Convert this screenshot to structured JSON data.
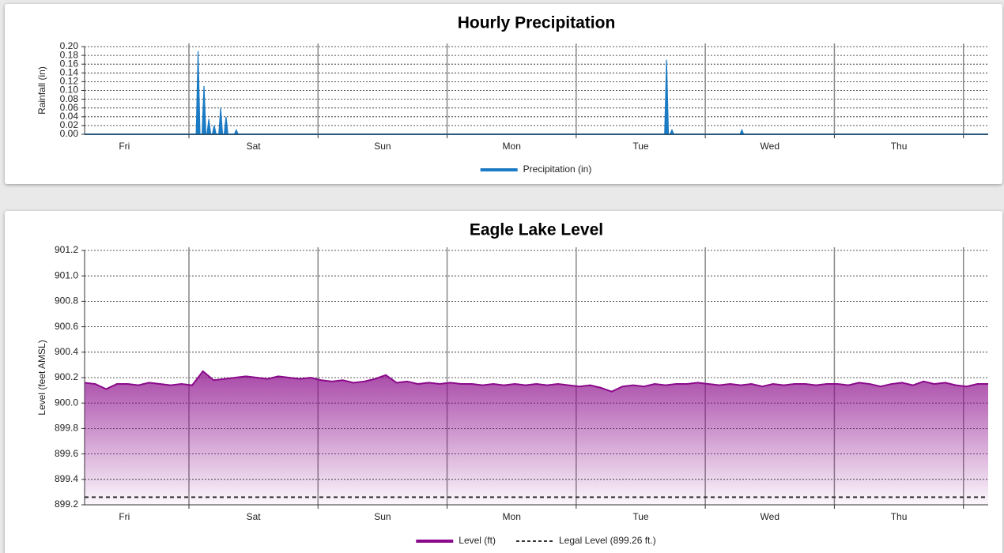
{
  "chart_data": [
    {
      "type": "spike",
      "title": "Hourly Precipitation",
      "y_label": "Rainfall (in)",
      "xlim": [
        0,
        168
      ],
      "xticks": [
        19.4,
        43.4,
        67.4,
        91.4,
        115.4,
        139.4,
        163.4
      ],
      "day_labels": [
        {
          "value": 7.4,
          "label": "Fri"
        },
        {
          "value": 31.4,
          "label": "Sat"
        },
        {
          "value": 55.4,
          "label": "Sun"
        },
        {
          "value": 79.4,
          "label": "Mon"
        },
        {
          "value": 103.4,
          "label": "Tue"
        },
        {
          "value": 127.4,
          "label": "Wed"
        },
        {
          "value": 151.4,
          "label": "Thu"
        }
      ],
      "ylim": [
        0,
        0.2
      ],
      "yticks": [
        {
          "value": 0,
          "label": "0.00"
        },
        {
          "value": 0.02,
          "label": "0.02"
        },
        {
          "value": 0.04,
          "label": "0.04"
        },
        {
          "value": 0.06,
          "label": "0.06"
        },
        {
          "value": 0.08,
          "label": "0.08"
        },
        {
          "value": 0.1,
          "label": "0.10"
        },
        {
          "value": 0.12,
          "label": "0.12"
        },
        {
          "value": 0.14,
          "label": "0.14"
        },
        {
          "value": 0.16,
          "label": "0.16"
        },
        {
          "value": 0.18,
          "label": "0.18"
        },
        {
          "value": 0.2,
          "label": "0.20"
        }
      ],
      "grid": true,
      "series": [
        {
          "name": "Precipitation (in)",
          "color": "#1a7bc4",
          "x": [
            21.1,
            22.2,
            23.1,
            24.1,
            25.3,
            26.3,
            28.2,
            108.2,
            109.2,
            122.2
          ],
          "values": [
            0.19,
            0.11,
            0.035,
            0.02,
            0.06,
            0.04,
            0.01,
            0.17,
            0.01,
            0.01
          ]
        }
      ]
    },
    {
      "type": "area",
      "title": "Eagle Lake Level",
      "y_label": "Level (feet AMSL)",
      "xlim": [
        0,
        168
      ],
      "xticks": [
        19.4,
        43.4,
        67.4,
        91.4,
        115.4,
        139.4,
        163.4
      ],
      "day_labels": [
        {
          "value": 7.4,
          "label": "Fri"
        },
        {
          "value": 31.4,
          "label": "Sat"
        },
        {
          "value": 55.4,
          "label": "Sun"
        },
        {
          "value": 79.4,
          "label": "Mon"
        },
        {
          "value": 103.4,
          "label": "Tue"
        },
        {
          "value": 127.4,
          "label": "Wed"
        },
        {
          "value": 151.4,
          "label": "Thu"
        }
      ],
      "ylim": [
        899.2,
        901.2
      ],
      "yticks": [
        899.2,
        899.4,
        899.6,
        899.8,
        {
          "value": 900,
          "label": "900.0"
        },
        900.2,
        900.4,
        900.6,
        900.8,
        {
          "value": 901,
          "label": "901.0"
        },
        901.2
      ],
      "grid": true,
      "series": [
        {
          "name": "Level (ft)",
          "color": "#8b0a8b",
          "x": [
            0,
            2,
            4,
            6,
            8,
            10,
            12,
            14,
            16,
            18,
            20,
            22,
            24,
            26,
            28,
            30,
            32,
            34,
            36,
            38,
            40,
            42,
            44,
            46,
            48,
            50,
            52,
            54,
            56,
            58,
            60,
            62,
            64,
            66,
            68,
            70,
            72,
            74,
            76,
            78,
            80,
            82,
            84,
            86,
            88,
            90,
            92,
            94,
            96,
            98,
            100,
            102,
            104,
            106,
            108,
            110,
            112,
            114,
            116,
            118,
            120,
            122,
            124,
            126,
            128,
            130,
            132,
            134,
            136,
            138,
            140,
            142,
            144,
            146,
            148,
            150,
            152,
            154,
            156,
            158,
            160,
            162,
            164,
            166,
            168
          ],
          "values": [
            900.16,
            900.15,
            900.11,
            900.15,
            900.15,
            900.14,
            900.16,
            900.15,
            900.14,
            900.15,
            900.14,
            900.25,
            900.18,
            900.19,
            900.2,
            900.21,
            900.2,
            900.19,
            900.21,
            900.2,
            900.19,
            900.2,
            900.18,
            900.17,
            900.18,
            900.16,
            900.17,
            900.19,
            900.22,
            900.16,
            900.17,
            900.15,
            900.16,
            900.15,
            900.16,
            900.15,
            900.15,
            900.14,
            900.15,
            900.14,
            900.15,
            900.14,
            900.15,
            900.14,
            900.15,
            900.14,
            900.13,
            900.14,
            900.12,
            900.09,
            900.13,
            900.14,
            900.13,
            900.15,
            900.14,
            900.15,
            900.15,
            900.16,
            900.15,
            900.14,
            900.15,
            900.14,
            900.15,
            900.13,
            900.15,
            900.14,
            900.15,
            900.15,
            900.14,
            900.15,
            900.15,
            900.14,
            900.16,
            900.15,
            900.13,
            900.15,
            900.16,
            900.14,
            900.17,
            900.15,
            900.16,
            900.14,
            900.13,
            900.15,
            900.15
          ]
        }
      ],
      "reference_lines": [
        {
          "name": "Legal Level (899.26 ft.)",
          "value": 899.26,
          "color": "#333333"
        }
      ]
    }
  ]
}
